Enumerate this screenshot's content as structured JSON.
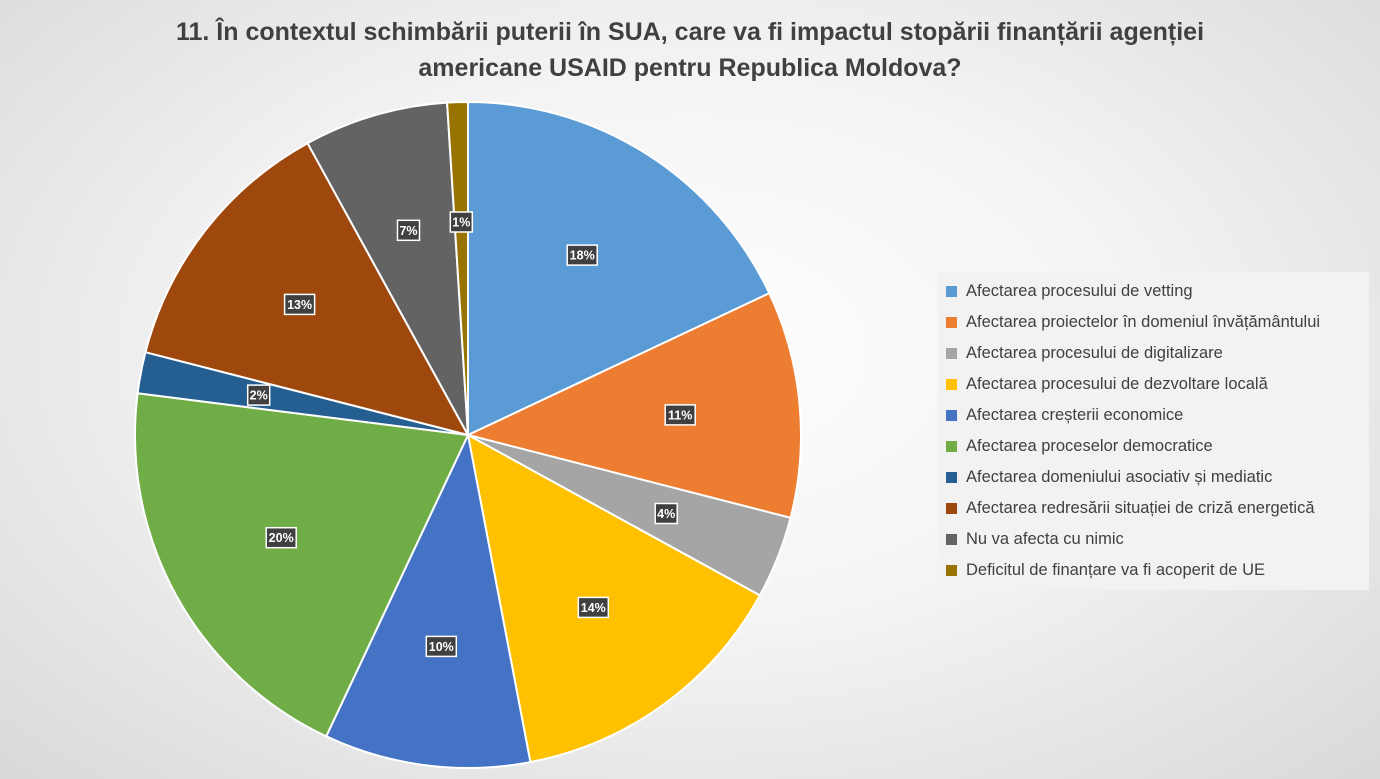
{
  "chart_data": {
    "type": "pie",
    "title_lines": [
      "11. În contextul schimbării puterii în SUA, care va fi impactul stopării finanțării agenției",
      "americane USAID pentru Republica Moldova?"
    ],
    "categories": [
      "Afectarea procesului de vetting",
      "Afectarea proiectelor în domeniul învățământului",
      "Afectarea procesului de digitalizare",
      "Afectarea procesului de dezvoltare locală",
      "Afectarea creșterii economice",
      "Afectarea proceselor democratice",
      "Afectarea domeniului asociativ și mediatic",
      "Afectarea redresării situației de criză energetică",
      "Nu va afecta cu nimic",
      "Deficitul de finanțare va fi acoperit de UE"
    ],
    "values": [
      18,
      11,
      4,
      14,
      10,
      20,
      2,
      13,
      7,
      1
    ],
    "labels": [
      "18%",
      "11%",
      "4%",
      "14%",
      "10%",
      "20%",
      "2%",
      "13%",
      "7%",
      "1%"
    ],
    "colors": [
      "#5B9BD5",
      "#ED7D31",
      "#A5A5A5",
      "#FFC000",
      "#4472C4",
      "#70AD47",
      "#255E91",
      "#9E480E",
      "#636363",
      "#997300"
    ],
    "legend_position": "right",
    "start": "12 o'clock",
    "direction": "clockwise"
  }
}
